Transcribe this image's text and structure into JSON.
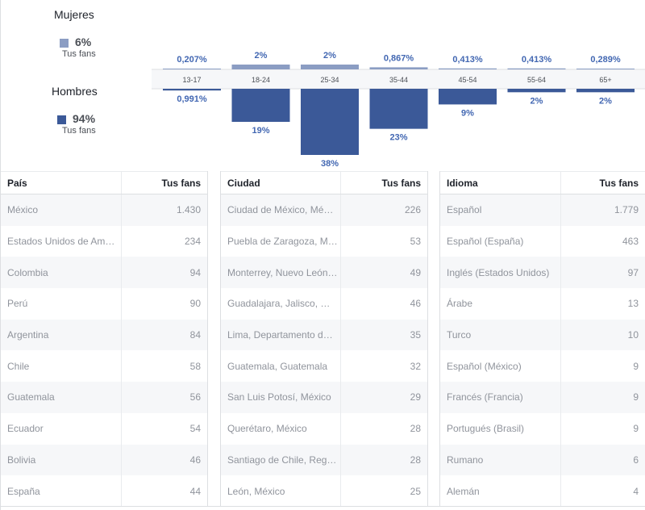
{
  "gender": {
    "women": {
      "title": "Mujeres",
      "percent": "6%",
      "sub": "Tus fans",
      "color": "#8b9dc3"
    },
    "men": {
      "title": "Hombres",
      "percent": "94%",
      "sub": "Tus fans",
      "color": "#3b5998"
    }
  },
  "chart_data": {
    "type": "bar",
    "title": "",
    "categories": [
      "13-17",
      "18-24",
      "25-34",
      "35-44",
      "45-54",
      "55-64",
      "65+"
    ],
    "series": [
      {
        "name": "Mujeres",
        "values": [
          0.207,
          2,
          2,
          0.867,
          0.413,
          0.413,
          0.289
        ],
        "labels": [
          "0,207%",
          "2%",
          "2%",
          "0,867%",
          "0,413%",
          "0,413%",
          "0,289%"
        ],
        "color": "#8b9dc3"
      },
      {
        "name": "Hombres",
        "values": [
          0.991,
          19,
          38,
          23,
          9,
          2,
          2
        ],
        "labels": [
          "0,991%",
          "19%",
          "38%",
          "23%",
          "9%",
          "2%",
          "2%"
        ],
        "color": "#3b5998"
      }
    ],
    "xlabel": "",
    "ylabel": "",
    "ylim": [
      0,
      38
    ]
  },
  "tables": {
    "countries": {
      "header_name": "País",
      "header_value": "Tus fans",
      "rows": [
        [
          "México",
          "1.430"
        ],
        [
          "Estados Unidos de Am…",
          "234"
        ],
        [
          "Colombia",
          "94"
        ],
        [
          "Perú",
          "90"
        ],
        [
          "Argentina",
          "84"
        ],
        [
          "Chile",
          "58"
        ],
        [
          "Guatemala",
          "56"
        ],
        [
          "Ecuador",
          "54"
        ],
        [
          "Bolivia",
          "46"
        ],
        [
          "España",
          "44"
        ]
      ]
    },
    "cities": {
      "header_name": "Ciudad",
      "header_value": "Tus fans",
      "rows": [
        [
          "Ciudad de México, Mé…",
          "226"
        ],
        [
          "Puebla de Zaragoza, M…",
          "53"
        ],
        [
          "Monterrey, Nuevo León…",
          "49"
        ],
        [
          "Guadalajara, Jalisco, …",
          "46"
        ],
        [
          "Lima, Departamento d…",
          "35"
        ],
        [
          "Guatemala, Guatemala",
          "32"
        ],
        [
          "San Luis Potosí, México",
          "29"
        ],
        [
          "Querétaro, México",
          "28"
        ],
        [
          "Santiago de Chile, Reg…",
          "28"
        ],
        [
          "León, México",
          "25"
        ]
      ]
    },
    "languages": {
      "header_name": "Idioma",
      "header_value": "Tus fans",
      "rows": [
        [
          "Español",
          "1.779"
        ],
        [
          "Español (España)",
          "463"
        ],
        [
          "Inglés (Estados Unidos)",
          "97"
        ],
        [
          "Árabe",
          "13"
        ],
        [
          "Turco",
          "10"
        ],
        [
          "Español (México)",
          "9"
        ],
        [
          "Francés (Francia)",
          "9"
        ],
        [
          "Portugués (Brasil)",
          "9"
        ],
        [
          "Rumano",
          "6"
        ],
        [
          "Alemán",
          "4"
        ]
      ]
    }
  }
}
